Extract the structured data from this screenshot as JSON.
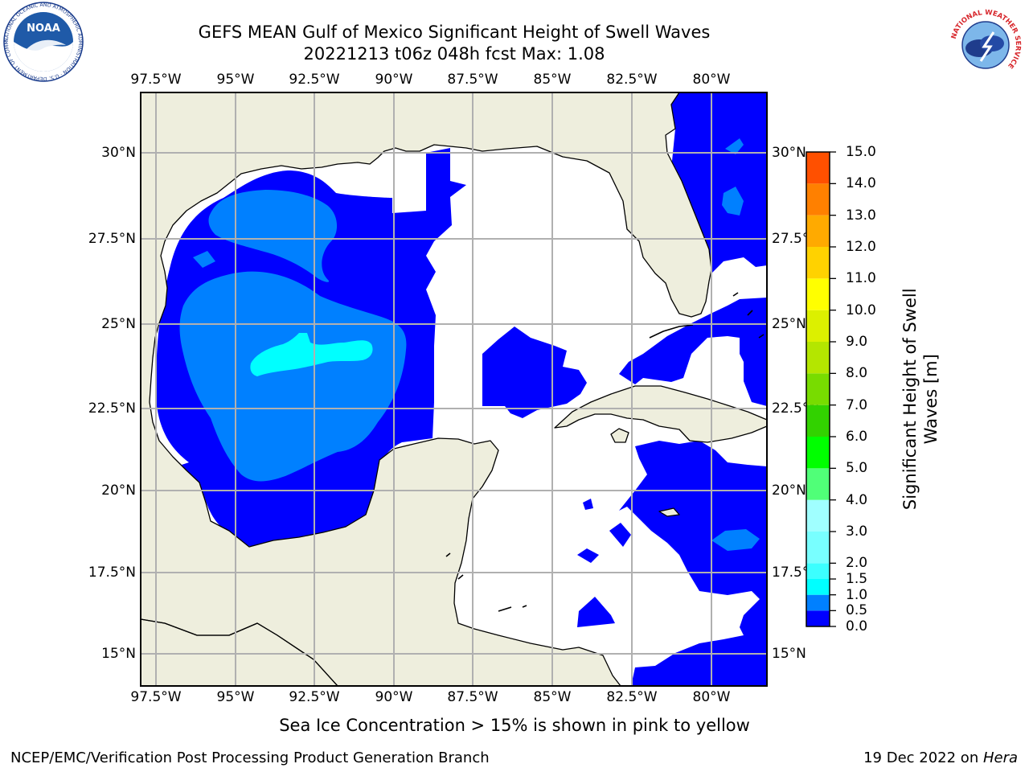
{
  "title": {
    "line1": "GEFS MEAN Gulf of Mexico Significant Height of Swell Waves",
    "line2": "20221213 t06z 048h fcst   Max: 1.08"
  },
  "longitude_labels": [
    "97.5°W",
    "95°W",
    "92.5°W",
    "90°W",
    "87.5°W",
    "85°W",
    "82.5°W",
    "80°W"
  ],
  "latitude_labels_left": [
    "30°N",
    "27.5°N",
    "25°N",
    "22.5°N",
    "20°N",
    "17.5°N",
    "15°N"
  ],
  "latitude_labels_right": [
    "30°N",
    "27.5°N",
    "25°N",
    "22.5°N",
    "20°N",
    "17.5°N",
    "15°N"
  ],
  "colorbar": {
    "title_line1": "Significant Height of Swell",
    "title_line2": "Waves [m]",
    "levels": [
      "0.0",
      "0.5",
      "1.0",
      "1.5",
      "2.0",
      "3.0",
      "4.0",
      "5.0",
      "6.0",
      "7.0",
      "8.0",
      "9.0",
      "10.0",
      "11.0",
      "12.0",
      "13.0",
      "14.0",
      "15.0"
    ],
    "colors": [
      "#0000ff",
      "#0080ff",
      "#00ffff",
      "#3cffff",
      "#78ffff",
      "#a0ffff",
      "#50ff78",
      "#00ff00",
      "#32d200",
      "#78dc00",
      "#b4e600",
      "#dcf000",
      "#ffff00",
      "#ffd200",
      "#ffaa00",
      "#ff8000",
      "#ff5000",
      "#ff2000",
      "#ff0000"
    ]
  },
  "map_colors": {
    "land": "#eeeedd",
    "swell_0_0_5": "#0000ff",
    "swell_0_5_1_0": "#0080ff",
    "swell_1_0_1_5": "#00ffff",
    "grid": "#b0b0b0"
  },
  "logos": {
    "noaa_text": "NOAA",
    "noaa_ring": "NATIONAL OCEANIC AND ATMOSPHERIC ADMINISTRATION · U.S. DEPARTMENT OF COMMERCE",
    "nws_ring": "NATIONAL WEATHER SERVICE"
  },
  "sea_ice_note": "Sea Ice Concentration > 15% is shown in pink to yellow",
  "footer": {
    "left": "NCEP/EMC/Verification Post Processing Product Generation Branch",
    "right_prefix": "19 Dec 2022 on ",
    "right_host": "Hera"
  }
}
